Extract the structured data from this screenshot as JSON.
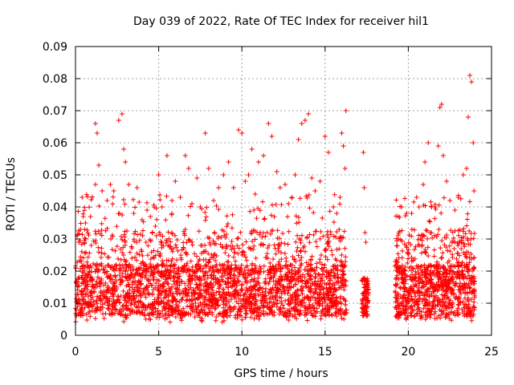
{
  "chart_data": {
    "type": "scatter",
    "title": "Day 039 of 2022, Rate Of TEC Index for receiver hil1",
    "xlabel": "GPS time / hours",
    "ylabel": "ROTI / TECUs",
    "xlim": [
      0,
      25
    ],
    "ylim": [
      0,
      0.09
    ],
    "xticks": [
      0,
      5,
      10,
      15,
      20,
      25
    ],
    "xtick_labels": [
      "0",
      "5",
      "10",
      "15",
      "20",
      "25"
    ],
    "yticks": [
      0,
      0.01,
      0.02,
      0.03,
      0.04,
      0.05,
      0.06,
      0.07,
      0.08,
      0.09
    ],
    "ytick_labels": [
      "0",
      "0.01",
      "0.02",
      "0.03",
      "0.04",
      "0.05",
      "0.06",
      "0.07",
      "0.08",
      "0.09"
    ],
    "grid": true,
    "marker": "plus",
    "color": "#ff0000",
    "data_segments": [
      {
        "x_range": [
          0.0,
          16.3
        ]
      },
      {
        "x_range": [
          17.2,
          17.6
        ]
      },
      {
        "x_range": [
          19.2,
          24.0
        ]
      }
    ],
    "series": [
      {
        "points": [
          [
            0.1,
            0.031
          ],
          [
            0.2,
            0.029
          ],
          [
            0.3,
            0.033
          ],
          [
            0.4,
            0.043
          ],
          [
            0.6,
            0.035
          ],
          [
            0.9,
            0.037
          ],
          [
            1.2,
            0.066
          ],
          [
            1.3,
            0.063
          ],
          [
            1.4,
            0.053
          ],
          [
            1.2,
            0.047
          ],
          [
            1.6,
            0.045
          ],
          [
            1.9,
            0.042
          ],
          [
            2.1,
            0.047
          ],
          [
            2.3,
            0.045
          ],
          [
            2.6,
            0.067
          ],
          [
            2.8,
            0.069
          ],
          [
            2.9,
            0.058
          ],
          [
            3.0,
            0.054
          ],
          [
            3.2,
            0.047
          ],
          [
            3.5,
            0.038
          ],
          [
            3.7,
            0.046
          ],
          [
            4.0,
            0.036
          ],
          [
            4.3,
            0.039
          ],
          [
            4.5,
            0.037
          ],
          [
            4.8,
            0.034
          ],
          [
            5.0,
            0.05
          ],
          [
            5.2,
            0.04
          ],
          [
            5.5,
            0.056
          ],
          [
            5.8,
            0.042
          ],
          [
            6.0,
            0.048
          ],
          [
            6.3,
            0.043
          ],
          [
            6.6,
            0.056
          ],
          [
            6.8,
            0.052
          ],
          [
            7.0,
            0.041
          ],
          [
            7.3,
            0.049
          ],
          [
            7.5,
            0.04
          ],
          [
            7.8,
            0.063
          ],
          [
            8.0,
            0.052
          ],
          [
            8.3,
            0.042
          ],
          [
            8.6,
            0.046
          ],
          [
            8.9,
            0.05
          ],
          [
            9.2,
            0.054
          ],
          [
            9.5,
            0.046
          ],
          [
            9.8,
            0.064
          ],
          [
            10.0,
            0.063
          ],
          [
            10.2,
            0.048
          ],
          [
            10.4,
            0.05
          ],
          [
            10.6,
            0.058
          ],
          [
            10.8,
            0.044
          ],
          [
            11.0,
            0.054
          ],
          [
            11.3,
            0.056
          ],
          [
            11.6,
            0.066
          ],
          [
            11.8,
            0.062
          ],
          [
            12.1,
            0.051
          ],
          [
            12.3,
            0.046
          ],
          [
            12.6,
            0.047
          ],
          [
            12.8,
            0.041
          ],
          [
            13.0,
            0.043
          ],
          [
            13.2,
            0.05
          ],
          [
            13.4,
            0.061
          ],
          [
            13.6,
            0.066
          ],
          [
            13.8,
            0.067
          ],
          [
            14.0,
            0.069
          ],
          [
            14.2,
            0.049
          ],
          [
            14.4,
            0.045
          ],
          [
            14.7,
            0.048
          ],
          [
            15.0,
            0.062
          ],
          [
            15.2,
            0.057
          ],
          [
            15.5,
            0.04
          ],
          [
            15.7,
            0.038
          ],
          [
            15.9,
            0.043
          ],
          [
            16.0,
            0.063
          ],
          [
            16.1,
            0.059
          ],
          [
            16.2,
            0.052
          ],
          [
            16.25,
            0.07
          ],
          [
            17.3,
            0.057
          ],
          [
            17.35,
            0.046
          ],
          [
            17.4,
            0.032
          ],
          [
            17.45,
            0.029
          ],
          [
            17.5,
            0.017
          ],
          [
            19.4,
            0.03
          ],
          [
            19.6,
            0.04
          ],
          [
            19.9,
            0.038
          ],
          [
            20.2,
            0.038
          ],
          [
            20.5,
            0.043
          ],
          [
            20.8,
            0.031
          ],
          [
            20.9,
            0.047
          ],
          [
            21.0,
            0.054
          ],
          [
            21.2,
            0.06
          ],
          [
            21.4,
            0.04
          ],
          [
            21.6,
            0.04
          ],
          [
            21.8,
            0.059
          ],
          [
            21.9,
            0.071
          ],
          [
            22.0,
            0.072
          ],
          [
            22.1,
            0.056
          ],
          [
            22.3,
            0.048
          ],
          [
            22.5,
            0.042
          ],
          [
            22.8,
            0.039
          ],
          [
            23.0,
            0.043
          ],
          [
            23.3,
            0.05
          ],
          [
            23.5,
            0.052
          ],
          [
            23.6,
            0.068
          ],
          [
            23.7,
            0.081
          ],
          [
            23.8,
            0.079
          ],
          [
            23.9,
            0.06
          ],
          [
            23.95,
            0.045
          ]
        ]
      }
    ]
  }
}
